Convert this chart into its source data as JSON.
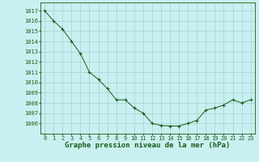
{
  "x": [
    0,
    1,
    2,
    3,
    4,
    5,
    6,
    7,
    8,
    9,
    10,
    11,
    12,
    13,
    14,
    15,
    16,
    17,
    18,
    19,
    20,
    21,
    22,
    23
  ],
  "y": [
    1017.0,
    1016.0,
    1015.2,
    1014.0,
    1012.8,
    1011.0,
    1010.3,
    1009.4,
    1008.3,
    1008.3,
    1007.5,
    1007.0,
    1006.0,
    1005.8,
    1005.75,
    1005.75,
    1006.0,
    1006.3,
    1007.3,
    1007.5,
    1007.8,
    1008.3,
    1008.0,
    1008.3
  ],
  "xlabel": "Graphe pression niveau de la mer (hPa)",
  "xlim": [
    -0.5,
    23.5
  ],
  "ylim": [
    1005.0,
    1017.8
  ],
  "yticks": [
    1006,
    1007,
    1008,
    1009,
    1010,
    1011,
    1012,
    1013,
    1014,
    1015,
    1016,
    1017
  ],
  "xticks": [
    0,
    1,
    2,
    3,
    4,
    5,
    6,
    7,
    8,
    9,
    10,
    11,
    12,
    13,
    14,
    15,
    16,
    17,
    18,
    19,
    20,
    21,
    22,
    23
  ],
  "line_color": "#1a5c1a",
  "marker_color": "#1a5c1a",
  "bg_color": "#c8f0f0",
  "grid_color": "#99cccc",
  "text_color": "#1a5c1a",
  "xlabel_fontsize": 6.5,
  "tick_fontsize": 5.0
}
